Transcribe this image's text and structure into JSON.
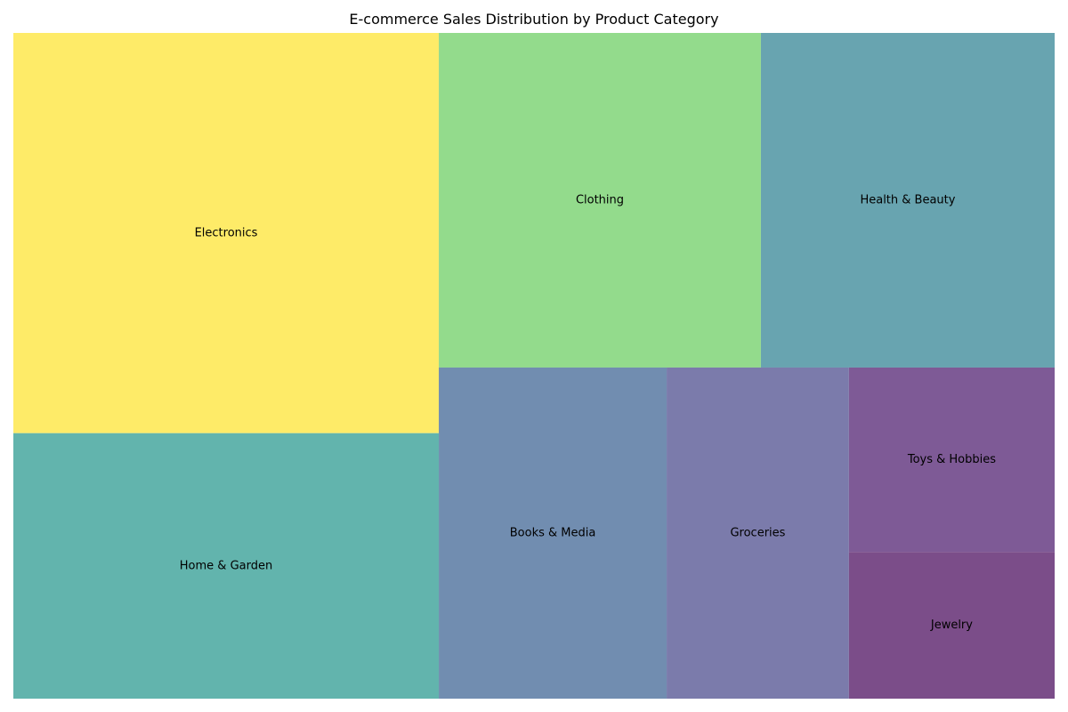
{
  "chart_data": {
    "type": "treemap",
    "title": "E-commerce Sales Distribution by Product Category",
    "xlabel": "",
    "ylabel": "",
    "grid": false,
    "legend": "none",
    "categories": [
      "Electronics",
      "Clothing",
      "Home & Garden",
      "Health & Beauty",
      "Books & Media",
      "Groceries",
      "Toys & Hobbies",
      "Jewelry"
    ],
    "values": [
      395,
      250,
      262,
      228,
      175,
      140,
      88,
      70
    ],
    "colors": [
      "#fde725",
      "#7ad151",
      "#22a884",
      "#2a788e",
      "#414487",
      "#440154",
      "#440154",
      "#440154"
    ],
    "cell_colors": {
      "Electronics": "#feeb68",
      "Clothing": "#93db8c",
      "Home & Garden": "#62b4ad",
      "Health & Beauty": "#68a4b0",
      "Books & Media": "#718db0",
      "Groceries": "#7b7bab",
      "Toys & Hobbies": "#7e5a96",
      "Jewelry": "#7b4d89"
    }
  }
}
